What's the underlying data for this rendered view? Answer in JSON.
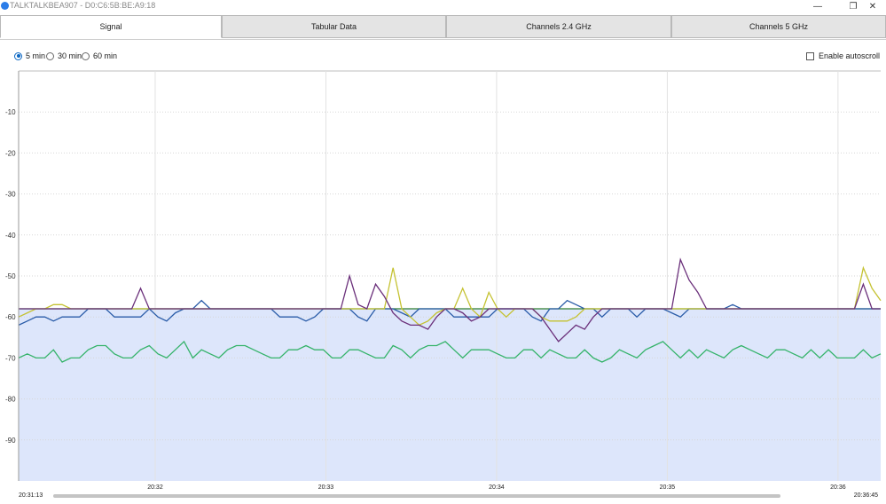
{
  "window": {
    "title": "TALKTALKBEA907 - D0:C6:5B:BE:A9:18",
    "controls": {
      "minimize": "—",
      "restore": "❐",
      "close": "✕"
    }
  },
  "tabs": [
    {
      "label": "Signal",
      "active": true
    },
    {
      "label": "Tabular Data",
      "active": false
    },
    {
      "label": "Channels 2.4 GHz",
      "active": false
    },
    {
      "label": "Channels 5 GHz",
      "active": false
    }
  ],
  "range_options": [
    {
      "label": "5 min",
      "selected": true
    },
    {
      "label": "30 min",
      "selected": false
    },
    {
      "label": "60 min",
      "selected": false
    }
  ],
  "autoscroll": {
    "label": "Enable autoscroll",
    "checked": false
  },
  "timeline": {
    "start": "20:31:13",
    "end": "20:36:45"
  },
  "chart_data": {
    "type": "line",
    "y_ticks": [
      "-10",
      "-20",
      "-30",
      "-40",
      "-50",
      "-60",
      "-70",
      "-80",
      "-90"
    ],
    "ylim": [
      -100,
      0
    ],
    "x_ticks": [
      {
        "label": "20:32",
        "x": 1.6
      },
      {
        "label": "20:33",
        "x": 2.6
      },
      {
        "label": "20:34",
        "x": 3.6
      },
      {
        "label": "20:35",
        "x": 4.6
      },
      {
        "label": "20:36",
        "x": 5.6
      }
    ],
    "xlim": [
      0.8,
      5.85
    ],
    "band": {
      "top": -58,
      "bottom": -100,
      "color": "#dde6fb"
    },
    "grid": true,
    "series": [
      {
        "color": "#2e7d32",
        "values": [
          -58,
          -58,
          -58,
          -58,
          -58,
          -58,
          -58,
          -58,
          -58,
          -58,
          -58,
          -58,
          -58,
          -58,
          -58,
          -58,
          -58,
          -58,
          -58,
          -58,
          -58,
          -58,
          -58,
          -58,
          -58,
          -58,
          -58,
          -58,
          -58,
          -58,
          -58,
          -58,
          -58,
          -58,
          -58,
          -58,
          -58,
          -58,
          -58,
          -58,
          -58,
          -58,
          -58,
          -58,
          -58,
          -58,
          -58,
          -58,
          -58,
          -58,
          -58,
          -58,
          -58,
          -58,
          -58,
          -58,
          -58,
          -58,
          -58,
          -58,
          -58,
          -58,
          -58,
          -58,
          -58,
          -58,
          -58,
          -58,
          -58,
          -58,
          -58,
          -58,
          -58,
          -58,
          -58,
          -58,
          -58,
          -58,
          -58,
          -58,
          -58,
          -58,
          -58,
          -58,
          -58,
          -58,
          -58,
          -58,
          -58,
          -58,
          -58,
          -58,
          -58,
          -58,
          -58,
          -58,
          -58,
          -58,
          -58,
          -58
        ]
      },
      {
        "color": "#2a5ca8",
        "values": [
          -62,
          -61,
          -60,
          -60,
          -61,
          -60,
          -60,
          -60,
          -58,
          -58,
          -58,
          -60,
          -60,
          -60,
          -60,
          -58,
          -60,
          -61,
          -59,
          -58,
          -58,
          -56,
          -58,
          -58,
          -58,
          -58,
          -58,
          -58,
          -58,
          -58,
          -60,
          -60,
          -60,
          -61,
          -60,
          -58,
          -58,
          -58,
          -58,
          -60,
          -61,
          -58,
          -58,
          -58,
          -59,
          -60,
          -58,
          -58,
          -58,
          -58,
          -60,
          -60,
          -60,
          -60,
          -60,
          -58,
          -58,
          -58,
          -58,
          -60,
          -61,
          -58,
          -58,
          -56,
          -57,
          -58,
          -58,
          -60,
          -58,
          -58,
          -58,
          -60,
          -58,
          -58,
          -58,
          -59,
          -60,
          -58,
          -58,
          -58,
          -58,
          -58,
          -57,
          -58,
          -58,
          -58,
          -58,
          -58,
          -58,
          -58,
          -58,
          -58,
          -58,
          -58,
          -58,
          -58,
          -58,
          -58,
          -58,
          -58
        ]
      },
      {
        "color": "#c5c232",
        "values": [
          -60,
          -59,
          -58,
          -58,
          -57,
          -57,
          -58,
          -58,
          -58,
          -58,
          -58,
          -58,
          -58,
          -58,
          -58,
          -58,
          -58,
          -58,
          -58,
          -58,
          -58,
          -58,
          -58,
          -58,
          -58,
          -58,
          -58,
          -58,
          -58,
          -58,
          -58,
          -58,
          -58,
          -58,
          -58,
          -58,
          -58,
          -58,
          -58,
          -58,
          -58,
          -58,
          -58,
          -48,
          -58,
          -60,
          -62,
          -61,
          -59,
          -58,
          -58,
          -53,
          -58,
          -60,
          -54,
          -58,
          -60,
          -58,
          -58,
          -58,
          -60,
          -61,
          -61,
          -61,
          -60,
          -58,
          -58,
          -58,
          -58,
          -58,
          -58,
          -58,
          -58,
          -58,
          -58,
          -58,
          -58,
          -58,
          -58,
          -58,
          -58,
          -58,
          -58,
          -58,
          -58,
          -58,
          -58,
          -58,
          -58,
          -58,
          -58,
          -58,
          -58,
          -58,
          -58,
          -58,
          -58,
          -48,
          -53,
          -56
        ]
      },
      {
        "color": "#6a2f7a",
        "values": [
          -58,
          -58,
          -58,
          -58,
          -58,
          -58,
          -58,
          -58,
          -58,
          -58,
          -58,
          -58,
          -58,
          -58,
          -53,
          -58,
          -58,
          -58,
          -58,
          -58,
          -58,
          -58,
          -58,
          -58,
          -58,
          -58,
          -58,
          -58,
          -58,
          -58,
          -58,
          -58,
          -58,
          -58,
          -58,
          -58,
          -58,
          -58,
          -50,
          -57,
          -58,
          -52,
          -55,
          -59,
          -61,
          -62,
          -62,
          -63,
          -60,
          -58,
          -58,
          -59,
          -61,
          -60,
          -58,
          -58,
          -58,
          -58,
          -58,
          -58,
          -60,
          -63,
          -66,
          -64,
          -62,
          -63,
          -60,
          -58,
          -58,
          -58,
          -58,
          -58,
          -58,
          -58,
          -58,
          -58,
          -46,
          -51,
          -54,
          -58,
          -58,
          -58,
          -58,
          -58,
          -58,
          -58,
          -58,
          -58,
          -58,
          -58,
          -58,
          -58,
          -58,
          -58,
          -58,
          -58,
          -58,
          -52,
          -58,
          -58
        ]
      },
      {
        "color": "#35b36a",
        "values": [
          -70,
          -69,
          -70,
          -70,
          -68,
          -71,
          -70,
          -70,
          -68,
          -67,
          -67,
          -69,
          -70,
          -70,
          -68,
          -67,
          -69,
          -70,
          -68,
          -66,
          -70,
          -68,
          -69,
          -70,
          -68,
          -67,
          -67,
          -68,
          -69,
          -70,
          -70,
          -68,
          -68,
          -67,
          -68,
          -68,
          -70,
          -70,
          -68,
          -68,
          -69,
          -70,
          -70,
          -67,
          -68,
          -70,
          -68,
          -67,
          -67,
          -66,
          -68,
          -70,
          -68,
          -68,
          -68,
          -69,
          -70,
          -70,
          -68,
          -68,
          -70,
          -68,
          -69,
          -70,
          -70,
          -68,
          -70,
          -71,
          -70,
          -68,
          -69,
          -70,
          -68,
          -67,
          -66,
          -68,
          -70,
          -68,
          -70,
          -68,
          -69,
          -70,
          -68,
          -67,
          -68,
          -69,
          -70,
          -68,
          -68,
          -69,
          -70,
          -68,
          -70,
          -68,
          -70,
          -70,
          -70,
          -68,
          -70,
          -69
        ]
      }
    ]
  }
}
